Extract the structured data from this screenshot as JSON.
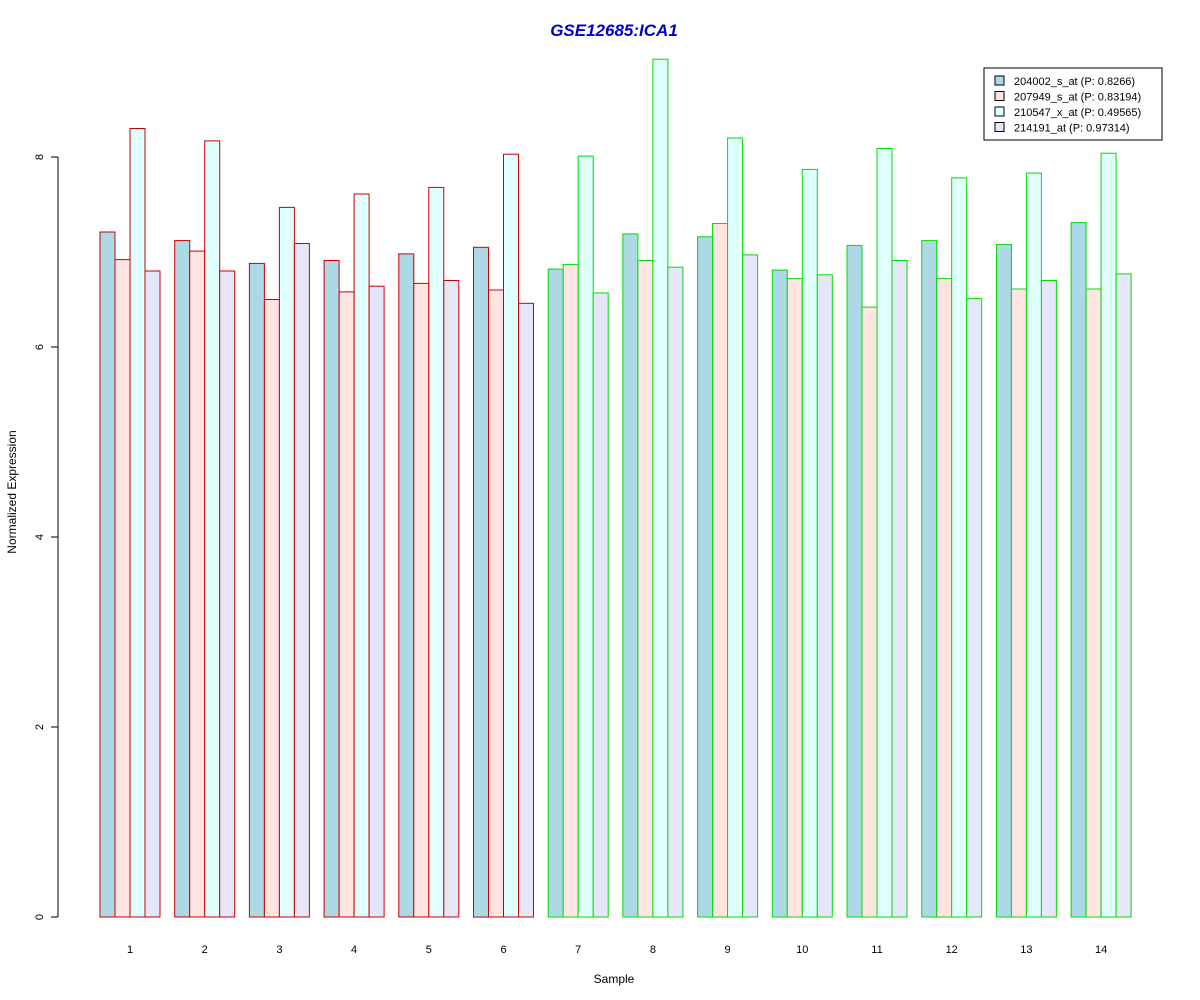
{
  "chart_data": {
    "type": "bar",
    "title": "GSE12685:ICA1",
    "title_color": "#0000cc",
    "xlabel": "Sample",
    "ylabel": "Normalized Expression",
    "ylim": [
      0,
      9
    ],
    "yticks": [
      0,
      2,
      4,
      6,
      8
    ],
    "grid": false,
    "legend_position": "top-right",
    "categories": [
      "1",
      "2",
      "3",
      "4",
      "5",
      "6",
      "7",
      "8",
      "9",
      "10",
      "11",
      "12",
      "13",
      "14"
    ],
    "group_border_colors": [
      "#cc0000",
      "#cc0000",
      "#cc0000",
      "#cc0000",
      "#cc0000",
      "#cc0000",
      "#00dd00",
      "#00dd00",
      "#00dd00",
      "#00dd00",
      "#00dd00",
      "#00dd00",
      "#00dd00",
      "#00dd00"
    ],
    "series": [
      {
        "name": "204002_s_at (P: 0.8266)",
        "color": "#add8e6",
        "values": [
          7.21,
          7.12,
          6.88,
          6.91,
          6.98,
          7.05,
          6.82,
          7.19,
          7.16,
          6.81,
          7.07,
          7.12,
          7.08,
          7.31
        ]
      },
      {
        "name": "207949_s_at (P: 0.83194)",
        "color": "#ffe4e1",
        "values": [
          6.92,
          7.01,
          6.5,
          6.58,
          6.67,
          6.6,
          6.87,
          6.91,
          7.3,
          6.72,
          6.42,
          6.72,
          6.61,
          6.61
        ]
      },
      {
        "name": "210547_x_at (P: 0.49565)",
        "color": "#e0ffff",
        "values": [
          8.3,
          8.17,
          7.47,
          7.61,
          7.68,
          8.03,
          8.01,
          9.03,
          8.2,
          7.87,
          8.09,
          7.78,
          7.83,
          8.04
        ]
      },
      {
        "name": "214191_at (P: 0.97314)",
        "color": "#e6e6fa",
        "values": [
          6.8,
          6.8,
          7.09,
          6.64,
          6.7,
          6.46,
          6.57,
          6.84,
          6.97,
          6.76,
          6.91,
          6.51,
          6.7,
          6.77
        ]
      }
    ]
  }
}
